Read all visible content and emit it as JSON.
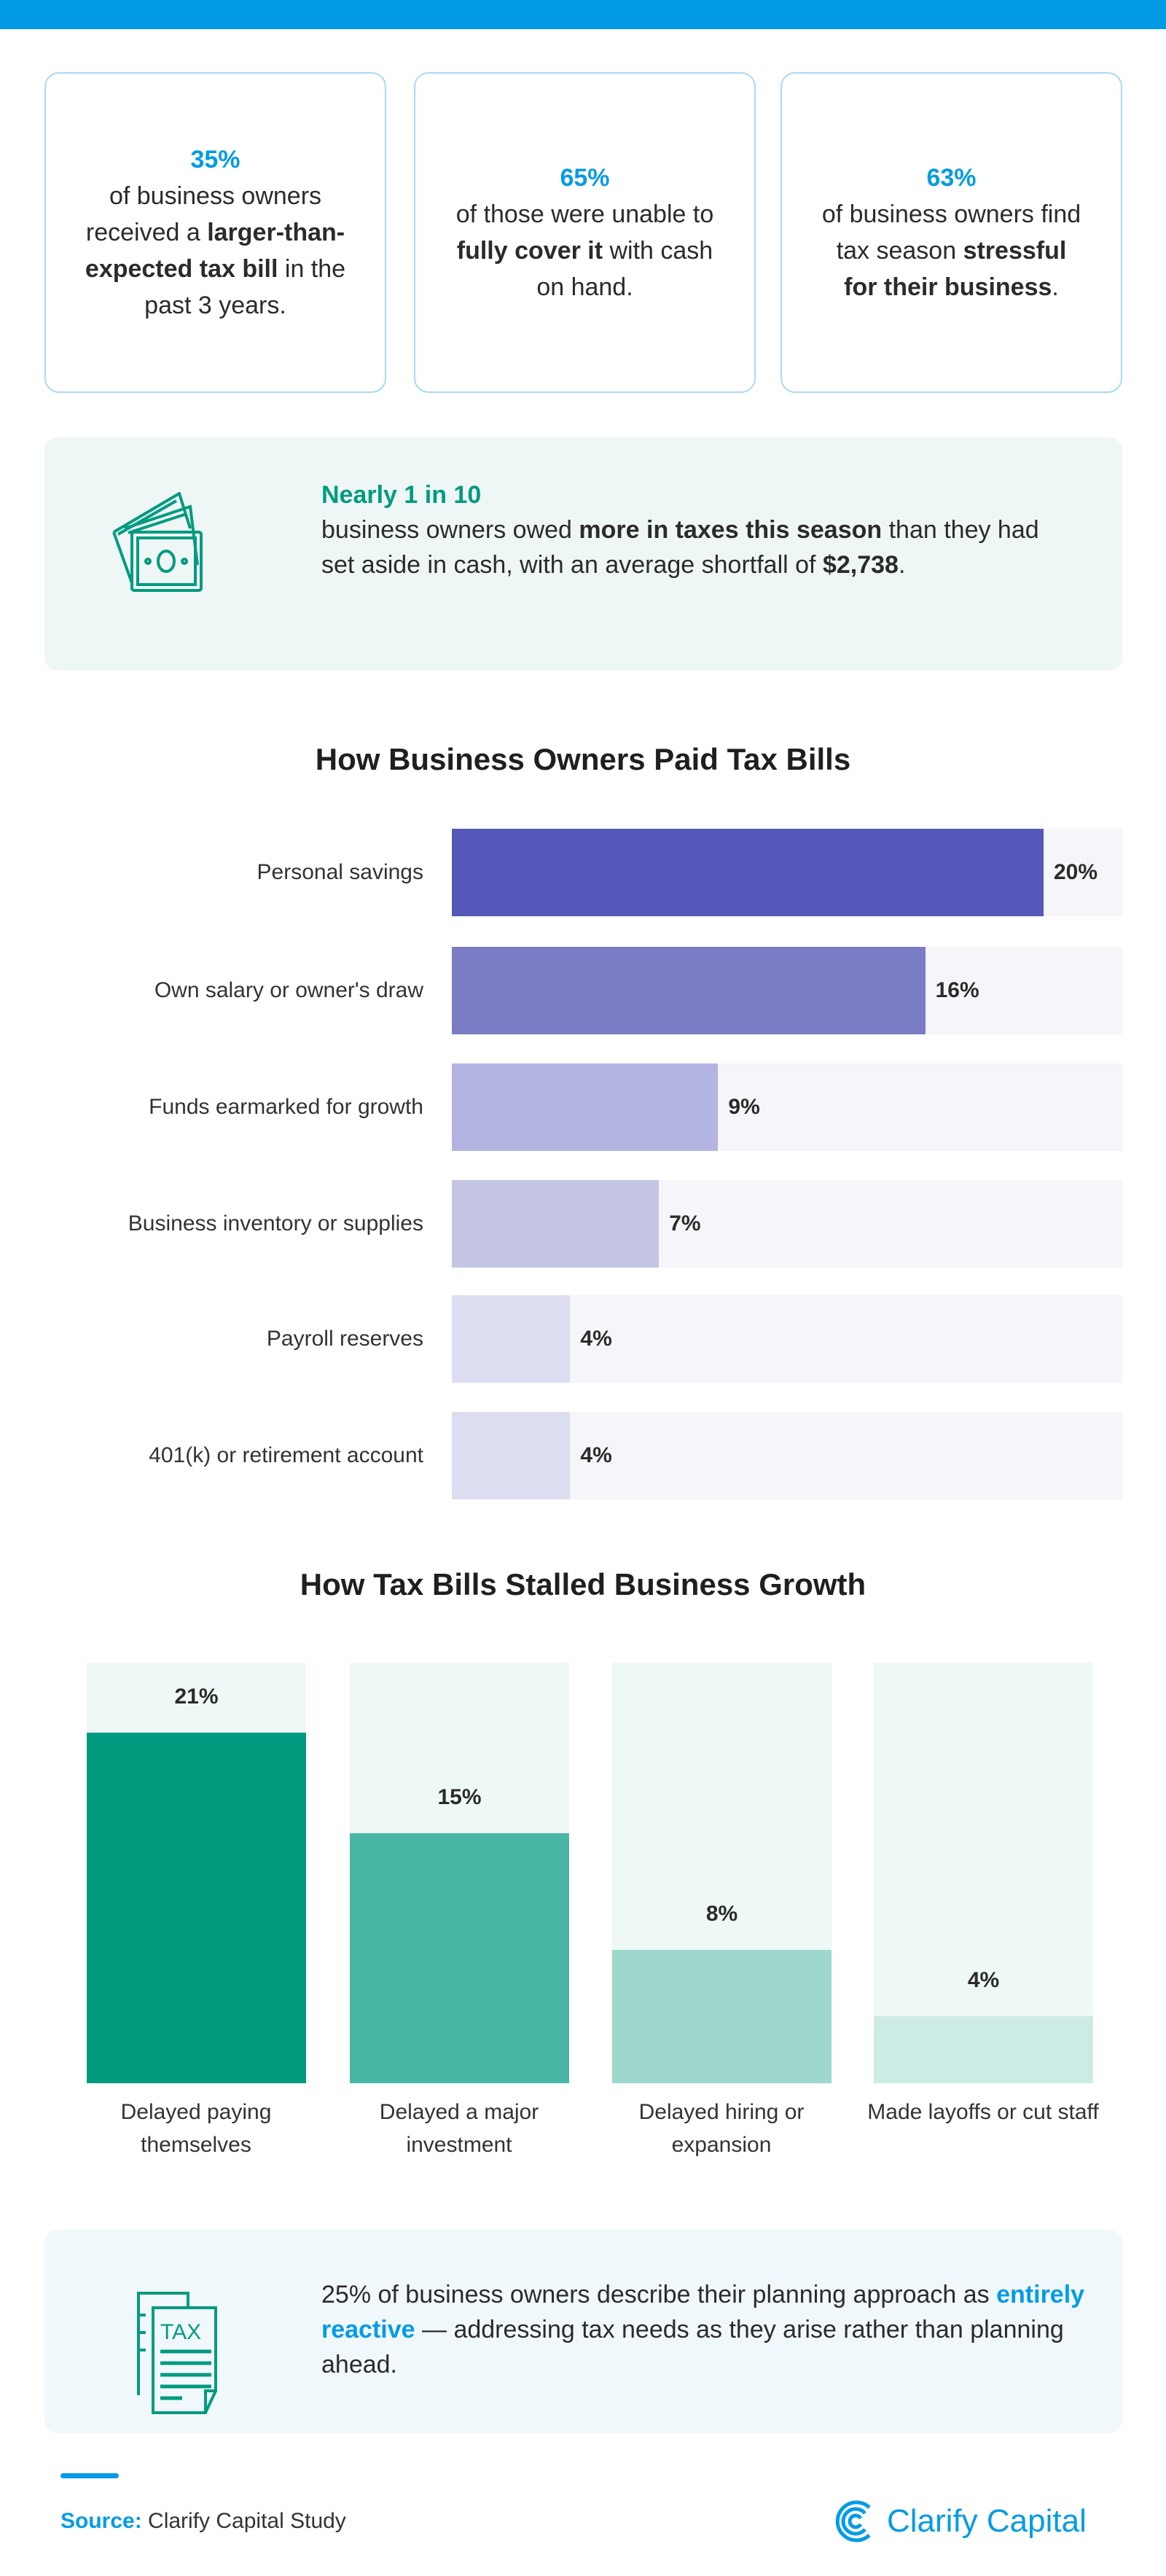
{
  "colors": {
    "brand_blue": "#039BE5",
    "green": "#009B7F",
    "purple": "#5558B8"
  },
  "stats": [
    {
      "pct": "35%",
      "parts": [
        {
          "t": "of business owners received a ",
          "b": false
        },
        {
          "t": "larger-than-expected tax bill",
          "b": true
        },
        {
          "t": " in the past 3 years.",
          "b": false
        }
      ]
    },
    {
      "pct": "65%",
      "parts": [
        {
          "t": "of those were unable to ",
          "b": false
        },
        {
          "t": "fully cover it",
          "b": true
        },
        {
          "t": " with cash on hand.",
          "b": false
        }
      ]
    },
    {
      "pct": "63%",
      "parts": [
        {
          "t": "of business owners find tax season ",
          "b": false
        },
        {
          "t": "stressful for their business",
          "b": true
        },
        {
          "t": ".",
          "b": false
        }
      ]
    }
  ],
  "highlight": {
    "icon": "money-bills-icon",
    "headline": "Nearly 1 in 10",
    "text_1": "business owners owed ",
    "bold_1": "more in taxes this season",
    "text_2": " than they had set aside in cash, with an average shortfall of ",
    "bold_2": "$2,738",
    "text_3": "."
  },
  "chart_data": [
    {
      "type": "bar",
      "orientation": "horizontal",
      "title": "How Business Owners Paid Tax Bills",
      "categories": [
        "Personal savings",
        "Own salary or owner's draw",
        "Funds earmarked for growth",
        "Business inventory or supplies",
        "Payroll reserves",
        "401(k) or retirement account"
      ],
      "values": [
        20,
        16,
        9,
        7,
        4,
        4
      ],
      "value_labels": [
        "20%",
        "16%",
        "9%",
        "7%",
        "4%",
        "4%"
      ],
      "colors": [
        "#5558B8",
        "#7A7CC6",
        "#B3B4E2",
        "#C5C5E6",
        "#DDDDF2",
        "#DDDDF2"
      ],
      "track_color": "#F5F5FA",
      "grid": false
    },
    {
      "type": "bar",
      "orientation": "vertical",
      "title": "How Tax Bills Stalled Business Growth",
      "categories": [
        "Delayed paying themselves",
        "Delayed a major investment",
        "Delayed hiring or expansion",
        "Made layoffs or cut staff"
      ],
      "values": [
        21,
        15,
        8,
        4
      ],
      "value_labels": [
        "21%",
        "15%",
        "8%",
        "4%"
      ],
      "colors": [
        "#009B7F",
        "#4AB6A5",
        "#9ED8CD",
        "#CDEBE5"
      ],
      "track_color": "#EEF8F6",
      "grid": false
    }
  ],
  "callout": {
    "icon": "tax-document-icon",
    "icon_text": "TAX",
    "text_1": "25% of business owners describe their planning approach as ",
    "highlight": "entirely reactive",
    "text_2": " — addressing tax needs as they arise rather than planning ahead."
  },
  "footer": {
    "source_label": "Source:",
    "source_text": " Clarify Capital Study",
    "logo_text": "Clarify Capital"
  }
}
